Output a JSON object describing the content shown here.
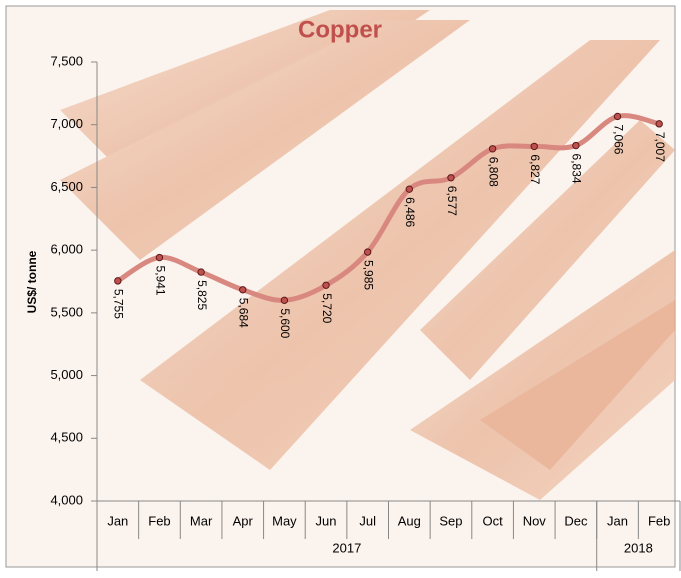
{
  "chart_data": {
    "type": "line",
    "title": "Copper",
    "y_label": "US$/ tonne",
    "categories": [
      "Jan",
      "Feb",
      "Mar",
      "Apr",
      "May",
      "Jun",
      "Jul",
      "Aug",
      "Sep",
      "Oct",
      "Nov",
      "Dec",
      "Jan",
      "Feb"
    ],
    "x_groups": [
      {
        "label": "2017",
        "count": 12
      },
      {
        "label": "2018",
        "count": 2
      }
    ],
    "series": [
      {
        "name": "Copper",
        "color": "#d98880",
        "values": [
          5755,
          5941,
          5825,
          5684,
          5600,
          5720,
          5985,
          6486,
          6577,
          6808,
          6827,
          6834,
          7066,
          7007
        ],
        "value_labels": [
          "5,755",
          "5,941",
          "5,825",
          "5,684",
          "5,600",
          "5,720",
          "5,985",
          "6,486",
          "6,577",
          "6,808",
          "6,827",
          "6,834",
          "7,066",
          "7,007"
        ]
      }
    ],
    "ylim": [
      4000,
      7500
    ],
    "yticks": [
      {
        "value": 4000,
        "label": "4,000"
      },
      {
        "value": 4500,
        "label": "4,500"
      },
      {
        "value": 5000,
        "label": "5,000"
      },
      {
        "value": 5500,
        "label": "5,500"
      },
      {
        "value": 6000,
        "label": "6,000"
      },
      {
        "value": 6500,
        "label": "6,500"
      },
      {
        "value": 7000,
        "label": "7,000"
      },
      {
        "value": 7500,
        "label": "7,500"
      }
    ],
    "smooth": true
  }
}
